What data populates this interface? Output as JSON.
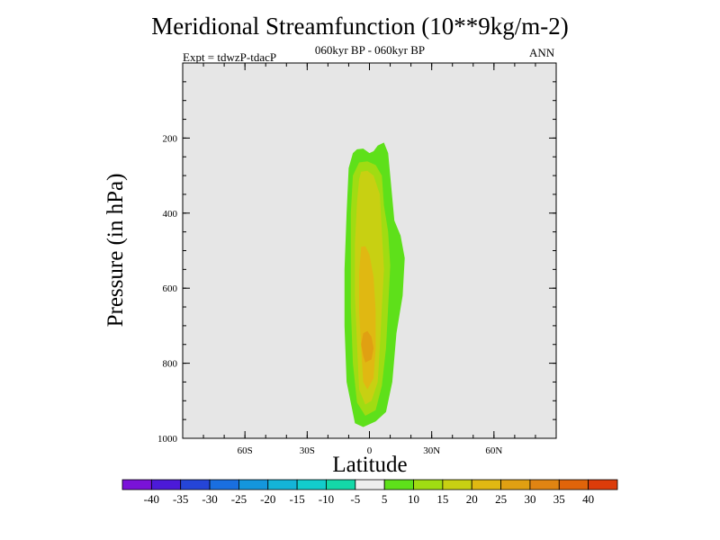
{
  "chart_data": {
    "type": "heatmap",
    "title": "Meridional Streamfunction (10**9kg/m-2)",
    "subtitle": "060kyr BP - 060kyr BP",
    "experiment_label": "Expt = tdwzP-tdacP",
    "season": "ANN",
    "xlabel": "Latitude",
    "ylabel": "Pressure (in hPa)",
    "x_range": [
      -90,
      90
    ],
    "y_range": [
      0,
      1000
    ],
    "y_inverted": true,
    "x_ticks": [
      {
        "value": -60,
        "label": "60S"
      },
      {
        "value": -30,
        "label": "30S"
      },
      {
        "value": 0,
        "label": "0"
      },
      {
        "value": 30,
        "label": "30N"
      },
      {
        "value": 60,
        "label": "60N"
      }
    ],
    "y_ticks": [
      {
        "value": 200,
        "label": "200"
      },
      {
        "value": 400,
        "label": "400"
      },
      {
        "value": 600,
        "label": "600"
      },
      {
        "value": 800,
        "label": "800"
      },
      {
        "value": 1000,
        "label": "1000"
      }
    ],
    "missing_color": "#e6e6e6",
    "colorbar": {
      "levels": [
        -40,
        -35,
        -30,
        -25,
        -20,
        -15,
        -10,
        -5,
        5,
        10,
        15,
        20,
        25,
        30,
        35,
        40
      ],
      "labels": [
        "-40",
        "-35",
        "-30",
        "-25",
        "-20",
        "-15",
        "-10",
        "-5",
        "5",
        "10",
        "15",
        "20",
        "25",
        "30",
        "35",
        "40"
      ],
      "colors": [
        "#7a12d8",
        "#4c1ad8",
        "#2545d8",
        "#1a6fe0",
        "#1496dc",
        "#14b4d8",
        "#12cccc",
        "#14d8a8",
        "#eeeeee",
        "#5ee01a",
        "#a0dc12",
        "#c8d012",
        "#e0b812",
        "#e0a012",
        "#e08412",
        "#e0640a",
        "#dc3c0a"
      ]
    },
    "contours": [
      {
        "level": 5,
        "color": "#5ee01a",
        "polygon": [
          [
            -6,
            230
          ],
          [
            -3,
            228
          ],
          [
            0,
            240
          ],
          [
            2,
            235
          ],
          [
            4,
            220
          ],
          [
            7,
            212
          ],
          [
            9,
            240
          ],
          [
            10,
            300
          ],
          [
            12,
            420
          ],
          [
            15,
            460
          ],
          [
            17,
            520
          ],
          [
            16,
            620
          ],
          [
            13,
            720
          ],
          [
            11,
            850
          ],
          [
            8,
            930
          ],
          [
            3,
            955
          ],
          [
            -3,
            970
          ],
          [
            -7,
            960
          ],
          [
            -11,
            850
          ],
          [
            -12,
            700
          ],
          [
            -12,
            550
          ],
          [
            -11,
            400
          ],
          [
            -10,
            280
          ],
          [
            -8,
            240
          ]
        ]
      },
      {
        "level": 10,
        "color": "#a0dc12",
        "polygon": [
          [
            -5,
            265
          ],
          [
            -1,
            262
          ],
          [
            3,
            272
          ],
          [
            6,
            300
          ],
          [
            7,
            380
          ],
          [
            9,
            450
          ],
          [
            10,
            540
          ],
          [
            9,
            650
          ],
          [
            8,
            760
          ],
          [
            6,
            860
          ],
          [
            3,
            925
          ],
          [
            -2,
            940
          ],
          [
            -6,
            905
          ],
          [
            -8,
            800
          ],
          [
            -9,
            650
          ],
          [
            -9,
            500
          ],
          [
            -9,
            400
          ],
          [
            -8,
            300
          ]
        ]
      },
      {
        "level": 15,
        "color": "#c8d012",
        "polygon": [
          [
            -4,
            290
          ],
          [
            -1,
            287
          ],
          [
            2,
            300
          ],
          [
            5,
            350
          ],
          [
            6,
            450
          ],
          [
            7,
            550
          ],
          [
            6,
            650
          ],
          [
            5,
            760
          ],
          [
            4,
            850
          ],
          [
            1,
            900
          ],
          [
            -2,
            910
          ],
          [
            -5,
            870
          ],
          [
            -6,
            750
          ],
          [
            -7,
            620
          ],
          [
            -7,
            480
          ],
          [
            -6,
            370
          ],
          [
            -5,
            310
          ]
        ]
      },
      {
        "level": 20,
        "color": "#e0b812",
        "polygon": [
          [
            -4,
            490
          ],
          [
            -2,
            488
          ],
          [
            0,
            510
          ],
          [
            2,
            570
          ],
          [
            3,
            660
          ],
          [
            3,
            760
          ],
          [
            2,
            840
          ],
          [
            -1,
            870
          ],
          [
            -3,
            850
          ],
          [
            -4,
            760
          ],
          [
            -5,
            660
          ],
          [
            -5,
            560
          ]
        ]
      },
      {
        "level": 25,
        "color": "#e0a012",
        "polygon": [
          [
            -3,
            720
          ],
          [
            -1,
            714
          ],
          [
            1,
            730
          ],
          [
            2,
            760
          ],
          [
            1,
            790
          ],
          [
            -2,
            798
          ],
          [
            -3,
            780
          ],
          [
            -4,
            750
          ]
        ]
      }
    ]
  }
}
